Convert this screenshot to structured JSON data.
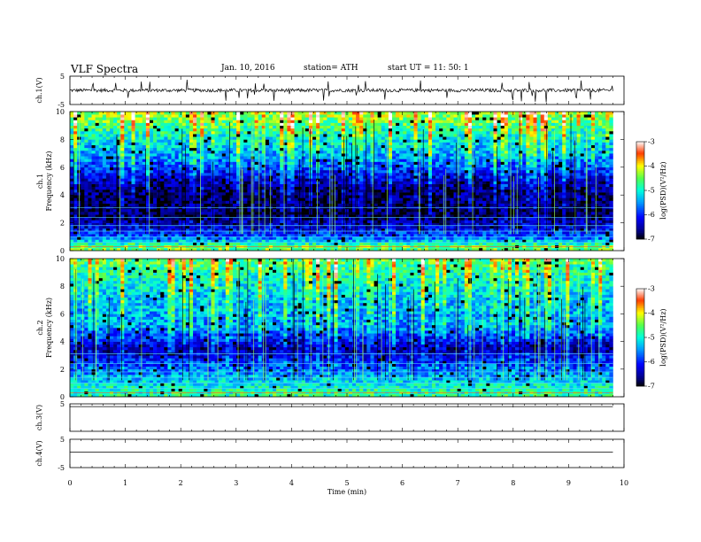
{
  "header": {
    "title": "VLF  Spectra",
    "date": "Jan. 10, 2016",
    "station": "station= ATH",
    "start_ut": "start  UT  =   11: 50: 1"
  },
  "chart_data": [
    {
      "type": "line",
      "panel": "ch1",
      "ylabel": "ch.1(V)",
      "ylim": [
        -5,
        5
      ],
      "yticks": [
        "5",
        "-5"
      ],
      "series": [
        {
          "baseline": 0,
          "noise_amplitude": 0.6,
          "color": "#000000"
        }
      ],
      "time_range_min": [
        0,
        9.8
      ]
    },
    {
      "type": "heatmap",
      "panel": "ch1-spectrogram",
      "ylabel_lines": [
        "ch.1",
        "Frequency  (kHz)"
      ],
      "ylim": [
        0,
        10
      ],
      "yticks": [
        "0",
        "2",
        "4",
        "6",
        "8",
        "10"
      ],
      "colorbar": {
        "label": "log(PSD)(V²/Hz)",
        "range": [
          -7,
          -3
        ],
        "ticks": [
          "-3",
          "-4",
          "-5",
          "-6",
          "-7"
        ]
      },
      "approx_log_psd_profile": [
        {
          "f_khz": 0.3,
          "value": -4.5
        },
        {
          "f_khz": 1.0,
          "value": -5.8
        },
        {
          "f_khz": 2.5,
          "value": -6.8
        },
        {
          "f_khz": 4.5,
          "value": -6.7
        },
        {
          "f_khz": 6.5,
          "value": -5.6
        },
        {
          "f_khz": 8.5,
          "value": -4.9
        },
        {
          "f_khz": 9.8,
          "value": -4.3
        }
      ],
      "time_range_min": [
        0,
        9.8
      ]
    },
    {
      "type": "heatmap",
      "panel": "ch2-spectrogram",
      "ylabel_lines": [
        "ch.2",
        "Frequency  (kHz)"
      ],
      "ylim": [
        0,
        10
      ],
      "yticks": [
        "0",
        "2",
        "4",
        "6",
        "8",
        "10"
      ],
      "colorbar": {
        "label": "log(PSD)(V²/Hz)",
        "range": [
          -7,
          -3
        ],
        "ticks": [
          "-3",
          "-4",
          "-5",
          "-6",
          "-7"
        ]
      },
      "approx_log_psd_profile": [
        {
          "f_khz": 0.3,
          "value": -4.8
        },
        {
          "f_khz": 1.5,
          "value": -5.4
        },
        {
          "f_khz": 3.5,
          "value": -6.5
        },
        {
          "f_khz": 5.0,
          "value": -5.5
        },
        {
          "f_khz": 7.0,
          "value": -5.3
        },
        {
          "f_khz": 9.0,
          "value": -4.9
        },
        {
          "f_khz": 9.8,
          "value": -4.6
        }
      ],
      "time_range_min": [
        0,
        9.8
      ]
    },
    {
      "type": "line",
      "panel": "ch3",
      "ylabel": "ch.3(V)",
      "ylim": [
        -5,
        5
      ],
      "yticks": [
        "5"
      ],
      "series": [
        {
          "baseline": 4.0,
          "color": "#000000"
        }
      ],
      "time_range_min": [
        0,
        9.8
      ]
    },
    {
      "type": "line",
      "panel": "ch4",
      "ylabel": "ch.4(V)",
      "ylim": [
        -5,
        5
      ],
      "yticks": [
        "5",
        "-5"
      ],
      "series": [
        {
          "baseline": 0.5,
          "color": "#000000"
        }
      ],
      "time_range_min": [
        0,
        9.8
      ]
    }
  ],
  "xaxis": {
    "label": "Time  (min)",
    "ticks": [
      "0",
      "1",
      "2",
      "3",
      "4",
      "5",
      "6",
      "7",
      "8",
      "9",
      "10"
    ],
    "range": [
      0,
      10
    ]
  }
}
